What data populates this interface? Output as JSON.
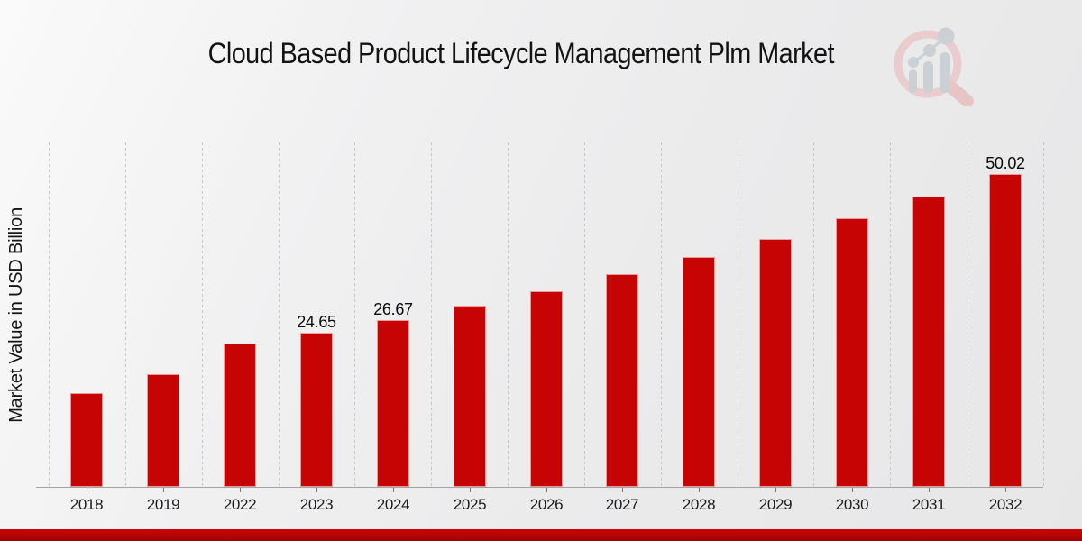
{
  "chart_data": {
    "type": "bar",
    "title": "Cloud Based Product Lifecycle Management Plm Market",
    "ylabel": "Market Value in USD Billion",
    "xlabel": "",
    "categories": [
      "2018",
      "2019",
      "2022",
      "2023",
      "2024",
      "2025",
      "2026",
      "2027",
      "2028",
      "2029",
      "2030",
      "2031",
      "2032"
    ],
    "values": [
      15.0,
      18.0,
      22.85,
      24.65,
      26.67,
      28.9,
      31.3,
      34.0,
      36.7,
      39.6,
      42.9,
      46.3,
      50.02
    ],
    "data_labels": {
      "2023": "24.65",
      "2024": "26.67",
      "2032": "50.02"
    },
    "ylim": [
      0,
      55
    ],
    "grid": "vertical-dashed",
    "legend": "none",
    "bar_color": "#c70404"
  },
  "footer": {
    "stripe_color": "#b30404"
  },
  "watermark": {
    "icon": "magnifier-growth-chart-logo",
    "ring_color": "#eac9cc",
    "bars_color": "#c9ced4"
  }
}
